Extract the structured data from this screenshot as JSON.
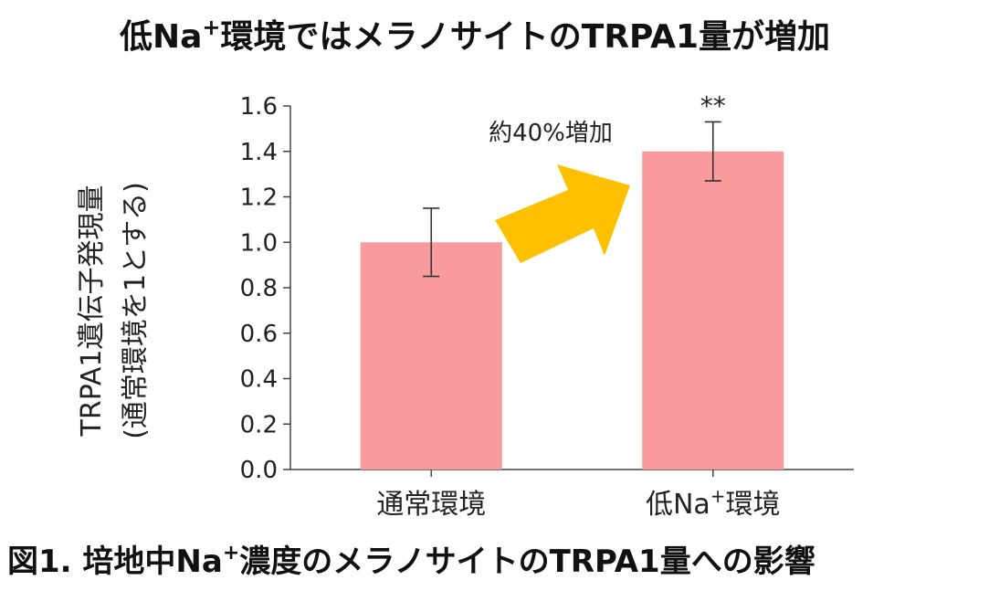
{
  "title_parts": {
    "pre": "低Na",
    "sup": "+",
    "post": "環境ではメラノサイトのTRPA1量が増加"
  },
  "caption_parts": {
    "pre": "図1. 培地中Na",
    "sup": "+",
    "post": "濃度のメラノサイトのTRPA1量への影響"
  },
  "colors": {
    "bar": "#f99a9c",
    "arrow": "#ffc000",
    "axis": "#444444",
    "text": "#111111"
  },
  "chart_data": {
    "type": "bar",
    "categories": [
      {
        "pre": "通常環境",
        "sup": "",
        "post": ""
      },
      {
        "pre": "低Na",
        "sup": "+",
        "post": "環境"
      }
    ],
    "values": [
      1.0,
      1.4
    ],
    "error_low": [
      0.85,
      1.27
    ],
    "error_high": [
      1.15,
      1.53
    ],
    "ylabel_line1": "TRPA1遺伝子発現量",
    "ylabel_line2": "(通常環境を1とする)",
    "ylim": [
      0,
      1.6
    ],
    "yticks": [
      "0.0",
      "0.2",
      "0.4",
      "0.6",
      "0.8",
      "1.0",
      "1.2",
      "1.4",
      "1.6"
    ],
    "annotations": {
      "increase_label": "約40%増加",
      "significance": "**"
    },
    "grid": false,
    "legend": "none"
  }
}
